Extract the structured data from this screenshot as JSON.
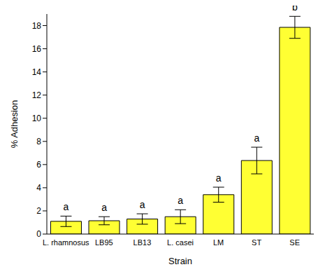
{
  "chart_data": {
    "type": "bar",
    "categories": [
      "L. rhamnosus",
      "LB95",
      "LB13",
      "L. casei",
      "LM",
      "ST",
      "SE"
    ],
    "values": [
      1.1,
      1.15,
      1.3,
      1.5,
      3.4,
      6.35,
      17.85
    ],
    "errors": [
      0.45,
      0.35,
      0.45,
      0.6,
      0.65,
      1.15,
      0.95
    ],
    "letters": [
      "a",
      "a",
      "a",
      "a",
      "a",
      "a",
      "b"
    ],
    "color": "#ffff33",
    "x_label": "Strain",
    "y_label": "% Adhesion",
    "ylim": [
      0,
      19
    ],
    "yticks": [
      0,
      2,
      4,
      6,
      8,
      10,
      12,
      14,
      16,
      18
    ],
    "grid": false
  }
}
